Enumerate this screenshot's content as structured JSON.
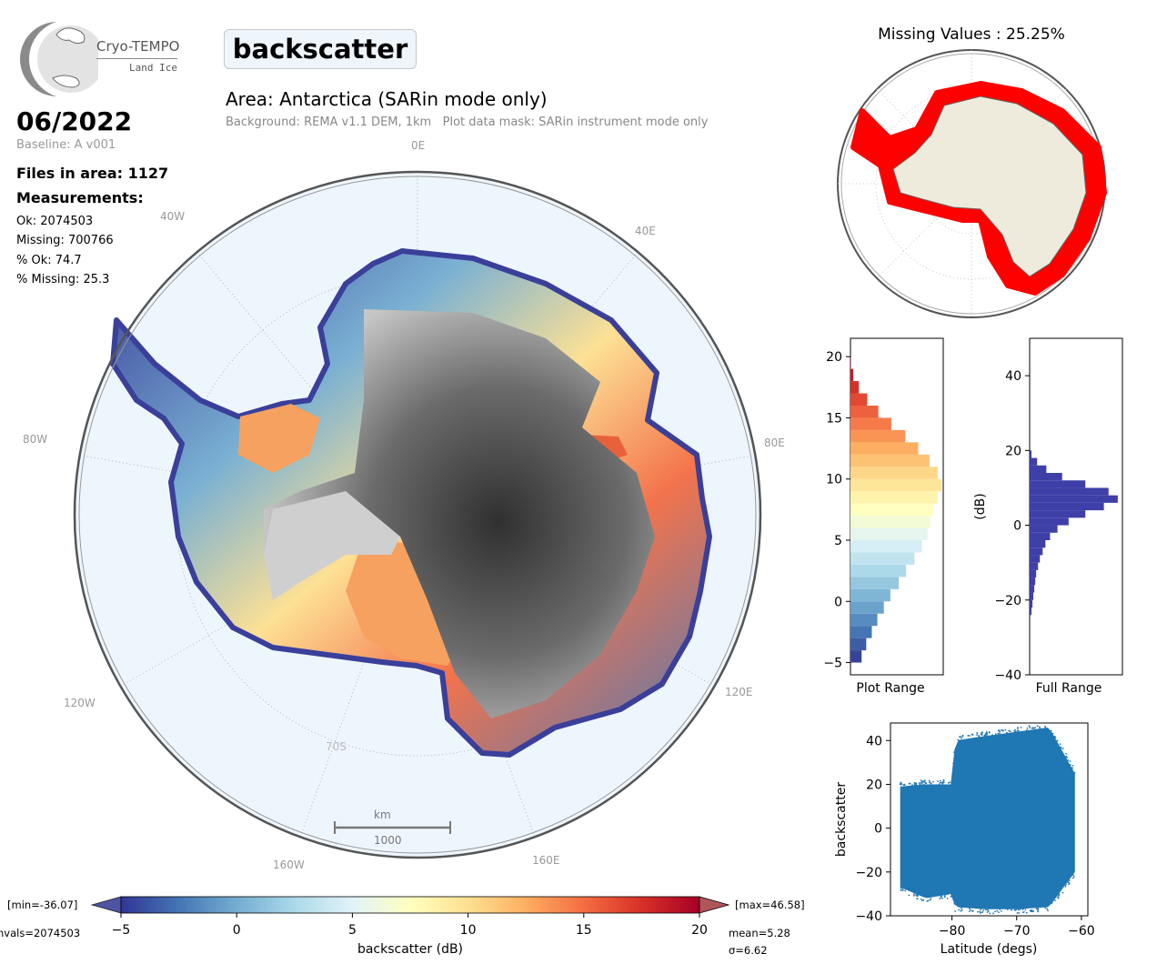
{
  "logo": {
    "name": "Cryo-TEMPO",
    "subtitle": "Land Ice"
  },
  "parameter_title": "backscatter",
  "area_title": "Area: Antarctica (SARin mode only)",
  "background_note": "Background: REMA v1.1 DEM, 1km   Plot data mask: SARin instrument mode only",
  "date": "06/2022",
  "baseline": "Baseline: A v001",
  "files_in_area": "Files in area: 1127",
  "measurements_heading": "Measurements:",
  "stats": {
    "ok": "Ok: 2074503",
    "missing": "Missing: 700766",
    "pct_ok": "% Ok: 74.7",
    "pct_missing": "% Missing: 25.3"
  },
  "map": {
    "lon_labels": [
      "0E",
      "40E",
      "80E",
      "120E",
      "160E",
      "160W",
      "120W",
      "80W",
      "40W"
    ],
    "lat_label": "70S",
    "scale_unit": "km",
    "scale_value": "1000",
    "colors": {
      "ocean": "#eef6fd",
      "land_dark": "#3a3a3a",
      "land_light": "#d8d8d8"
    }
  },
  "missing_map": {
    "title": "Missing Values : 25.25%",
    "colors": {
      "land": "#efebdc",
      "missing": "#ff0000",
      "ocean": "#ffffff"
    }
  },
  "chart_data": [
    {
      "type": "bar",
      "orientation": "horizontal",
      "name": "plot-range-histogram",
      "xlabel": "Plot Range",
      "ylabel": "",
      "ylim": [
        -6,
        21.5
      ],
      "yticks": [
        -5,
        0,
        5,
        10,
        15,
        20
      ],
      "bin_edges": [
        -5,
        -4,
        -3,
        -2,
        -1,
        0,
        1,
        2,
        3,
        4,
        5,
        6,
        7,
        8,
        9,
        10,
        11,
        12,
        13,
        14,
        15,
        16,
        17,
        18,
        19
      ],
      "values": [
        0.12,
        0.17,
        0.23,
        0.29,
        0.36,
        0.43,
        0.52,
        0.6,
        0.69,
        0.77,
        0.83,
        0.86,
        0.89,
        0.94,
        0.98,
        0.94,
        0.85,
        0.73,
        0.59,
        0.44,
        0.3,
        0.18,
        0.09,
        0.03,
        0.005
      ],
      "colormap": "RdYlBu_r"
    },
    {
      "type": "bar",
      "orientation": "horizontal",
      "name": "full-range-histogram",
      "xlabel": "Full Range",
      "ylabel": "(dB)",
      "ylim": [
        -40,
        50
      ],
      "yticks": [
        -40,
        -20,
        0,
        20,
        40
      ],
      "bin_edges": [
        -24,
        -22,
        -20,
        -18,
        -16,
        -14,
        -12,
        -10,
        -8,
        -6,
        -4,
        -2,
        0,
        2,
        4,
        6,
        8,
        10,
        12,
        14,
        16,
        18
      ],
      "values": [
        0.02,
        0.03,
        0.04,
        0.05,
        0.06,
        0.07,
        0.09,
        0.11,
        0.14,
        0.17,
        0.22,
        0.3,
        0.42,
        0.6,
        0.8,
        0.95,
        0.85,
        0.6,
        0.35,
        0.18,
        0.08,
        0.02
      ],
      "color": "#3f3fa8"
    },
    {
      "type": "scatter",
      "name": "backscatter-vs-latitude",
      "xlabel": "Latitude (degs)",
      "ylabel": "backscatter",
      "xlim": [
        -89.5,
        -59
      ],
      "ylim": [
        -40,
        48
      ],
      "xticks": [
        -80,
        -70,
        -60
      ],
      "yticks": [
        -40,
        -20,
        0,
        20,
        40
      ],
      "color": "#1f77b4",
      "envelope": {
        "x": [
          -88,
          -84,
          -80,
          -79.5,
          -75,
          -70,
          -65,
          -61
        ],
        "ymax": [
          19,
          20,
          20,
          40,
          42,
          44,
          46,
          25
        ],
        "ymin": [
          -27,
          -32,
          -30,
          -36,
          -37,
          -37,
          -36,
          -20
        ]
      }
    },
    {
      "type": "colorbar",
      "name": "backscatter-colorbar",
      "label": "backscatter (dB)",
      "range": [
        -5,
        20
      ],
      "ticks": [
        -5,
        0,
        5,
        10,
        15,
        20
      ],
      "colormap": "RdYlBu_r",
      "min_note": "[min=-36.07]",
      "max_note": "[max=46.58]",
      "nvals_note": "nvals=2074503",
      "mean_note": "mean=5.28",
      "sigma_note": "σ=6.62"
    }
  ]
}
